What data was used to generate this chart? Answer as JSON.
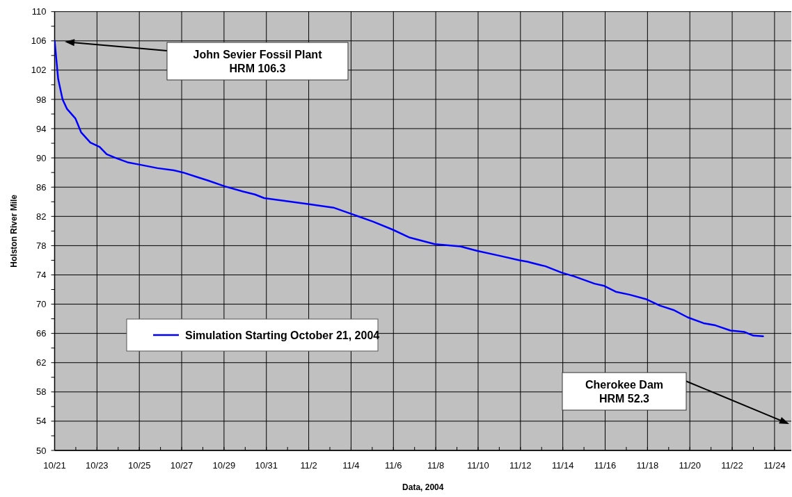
{
  "chart_data": {
    "type": "line",
    "xlabel": "Data, 2004",
    "ylabel": "Holston River Mile",
    "x": [
      "2004-10-21T00:00",
      "2004-10-21T04:00",
      "2004-10-21T09:00",
      "2004-10-21T14:00",
      "2004-10-21T23:30",
      "2004-10-22T06:00",
      "2004-10-22T16:30",
      "2004-10-23T03:00",
      "2004-10-23T11:00",
      "2004-10-23T21:00",
      "2004-10-24T10:30",
      "2004-10-24T23:30",
      "2004-10-25T20:30",
      "2004-10-26T15:00",
      "2004-10-27T01:30",
      "2004-10-27T17:00",
      "2004-10-28T06:00",
      "2004-10-29T01:00",
      "2004-10-29T21:30",
      "2004-10-30T11:00",
      "2004-10-30T21:30",
      "2004-11-01T23:00",
      "2004-11-03T04:00",
      "2004-11-03T23:00",
      "2004-11-05T00:30",
      "2004-11-05T23:00",
      "2004-11-06T18:30",
      "2004-11-07T23:00",
      "2004-11-09T04:00",
      "2004-11-09T22:30",
      "2004-11-11T01:00",
      "2004-11-11T23:00",
      "2004-11-12T08:00",
      "2004-11-13T00:00",
      "2004-11-13T04:00",
      "2004-11-13T23:00",
      "2004-11-14T13:00",
      "2004-11-15T12:00",
      "2004-11-15T23:00",
      "2004-11-16T12:00",
      "2004-11-17T03:30",
      "2004-11-17T22:00",
      "2004-11-18T14:00",
      "2004-11-19T05:30",
      "2004-11-19T21:30",
      "2004-11-20T15:30",
      "2004-11-21T05:00",
      "2004-11-21T22:00",
      "2004-11-22T14:00",
      "2004-11-23T00:00",
      "2004-11-23T11:00"
    ],
    "series": [
      {
        "name": "Simulation Starting October 21, 2004",
        "color": "#0000ff",
        "values": [
          106,
          100.8,
          98,
          96.7,
          95.4,
          93.5,
          92.1,
          91.5,
          90.5,
          90,
          89.4,
          89.1,
          88.6,
          88.3,
          88,
          87.4,
          86.9,
          86.1,
          85.4,
          85,
          84.5,
          83.7,
          83.2,
          82.4,
          81.3,
          80.2,
          79.1,
          78.2,
          77.9,
          77.3,
          76.6,
          76,
          75.8,
          75.3,
          75.2,
          74.3,
          73.8,
          72.8,
          72.5,
          71.7,
          71.3,
          70.7,
          69.8,
          69.2,
          68.2,
          67.4,
          67.1,
          66.4,
          66.2,
          65.7,
          65.6
        ]
      }
    ],
    "xlim": [
      "2004-10-21",
      "2004-11-24T19:00"
    ],
    "xticks": [
      {
        "value": "2004-10-21",
        "label": "10/21"
      },
      {
        "value": "2004-10-22",
        "label": null
      },
      {
        "value": "2004-10-23",
        "label": "10/23"
      },
      {
        "value": "2004-10-24",
        "label": null
      },
      {
        "value": "2004-10-25",
        "label": "10/25"
      },
      {
        "value": "2004-10-26",
        "label": null
      },
      {
        "value": "2004-10-27",
        "label": "10/27"
      },
      {
        "value": "2004-10-28",
        "label": null
      },
      {
        "value": "2004-10-29",
        "label": "10/29"
      },
      {
        "value": "2004-10-30",
        "label": null
      },
      {
        "value": "2004-10-31",
        "label": "10/31"
      },
      {
        "value": "2004-11-01",
        "label": null
      },
      {
        "value": "2004-11-02",
        "label": "11/2"
      },
      {
        "value": "2004-11-03",
        "label": null
      },
      {
        "value": "2004-11-04",
        "label": "11/4"
      },
      {
        "value": "2004-11-05",
        "label": null
      },
      {
        "value": "2004-11-06",
        "label": "11/6"
      },
      {
        "value": "2004-11-07",
        "label": null
      },
      {
        "value": "2004-11-08",
        "label": "11/8"
      },
      {
        "value": "2004-11-09",
        "label": null
      },
      {
        "value": "2004-11-10",
        "label": "11/10"
      },
      {
        "value": "2004-11-11",
        "label": null
      },
      {
        "value": "2004-11-12",
        "label": "11/12"
      },
      {
        "value": "2004-11-13",
        "label": null
      },
      {
        "value": "2004-11-14",
        "label": "11/14"
      },
      {
        "value": "2004-11-15",
        "label": null
      },
      {
        "value": "2004-11-16",
        "label": "11/16"
      },
      {
        "value": "2004-11-17",
        "label": null
      },
      {
        "value": "2004-11-18",
        "label": "11/18"
      },
      {
        "value": "2004-11-19",
        "label": null
      },
      {
        "value": "2004-11-20",
        "label": "11/20"
      },
      {
        "value": "2004-11-21",
        "label": null
      },
      {
        "value": "2004-11-22",
        "label": "11/22"
      },
      {
        "value": "2004-11-23",
        "label": null
      },
      {
        "value": "2004-11-24",
        "label": "11/24"
      }
    ],
    "ylim": [
      50,
      110
    ],
    "yticks": [
      50,
      {
        "value": 52,
        "label": null
      },
      54,
      {
        "value": 56,
        "label": null
      },
      58,
      {
        "value": 60,
        "label": null
      },
      62,
      {
        "value": 64,
        "label": null
      },
      66,
      {
        "value": 68,
        "label": null
      },
      70,
      {
        "value": 72,
        "label": null
      },
      74,
      {
        "value": 76,
        "label": null
      },
      78,
      {
        "value": 80,
        "label": null
      },
      82,
      {
        "value": 84,
        "label": null
      },
      86,
      {
        "value": 88,
        "label": null
      },
      90,
      {
        "value": 92,
        "label": null
      },
      94,
      {
        "value": 96,
        "label": null
      },
      98,
      {
        "value": 100,
        "label": null
      },
      102,
      {
        "value": 104,
        "label": null
      },
      106,
      {
        "value": 108,
        "label": null
      },
      110
    ],
    "grid": true,
    "legend": "left",
    "marker": "none",
    "line_style": "solid",
    "annotations": [
      "John Sevier Fossil Plant\nHRM 106.3",
      "Cherokee Dam\nHRM 52.3"
    ]
  }
}
